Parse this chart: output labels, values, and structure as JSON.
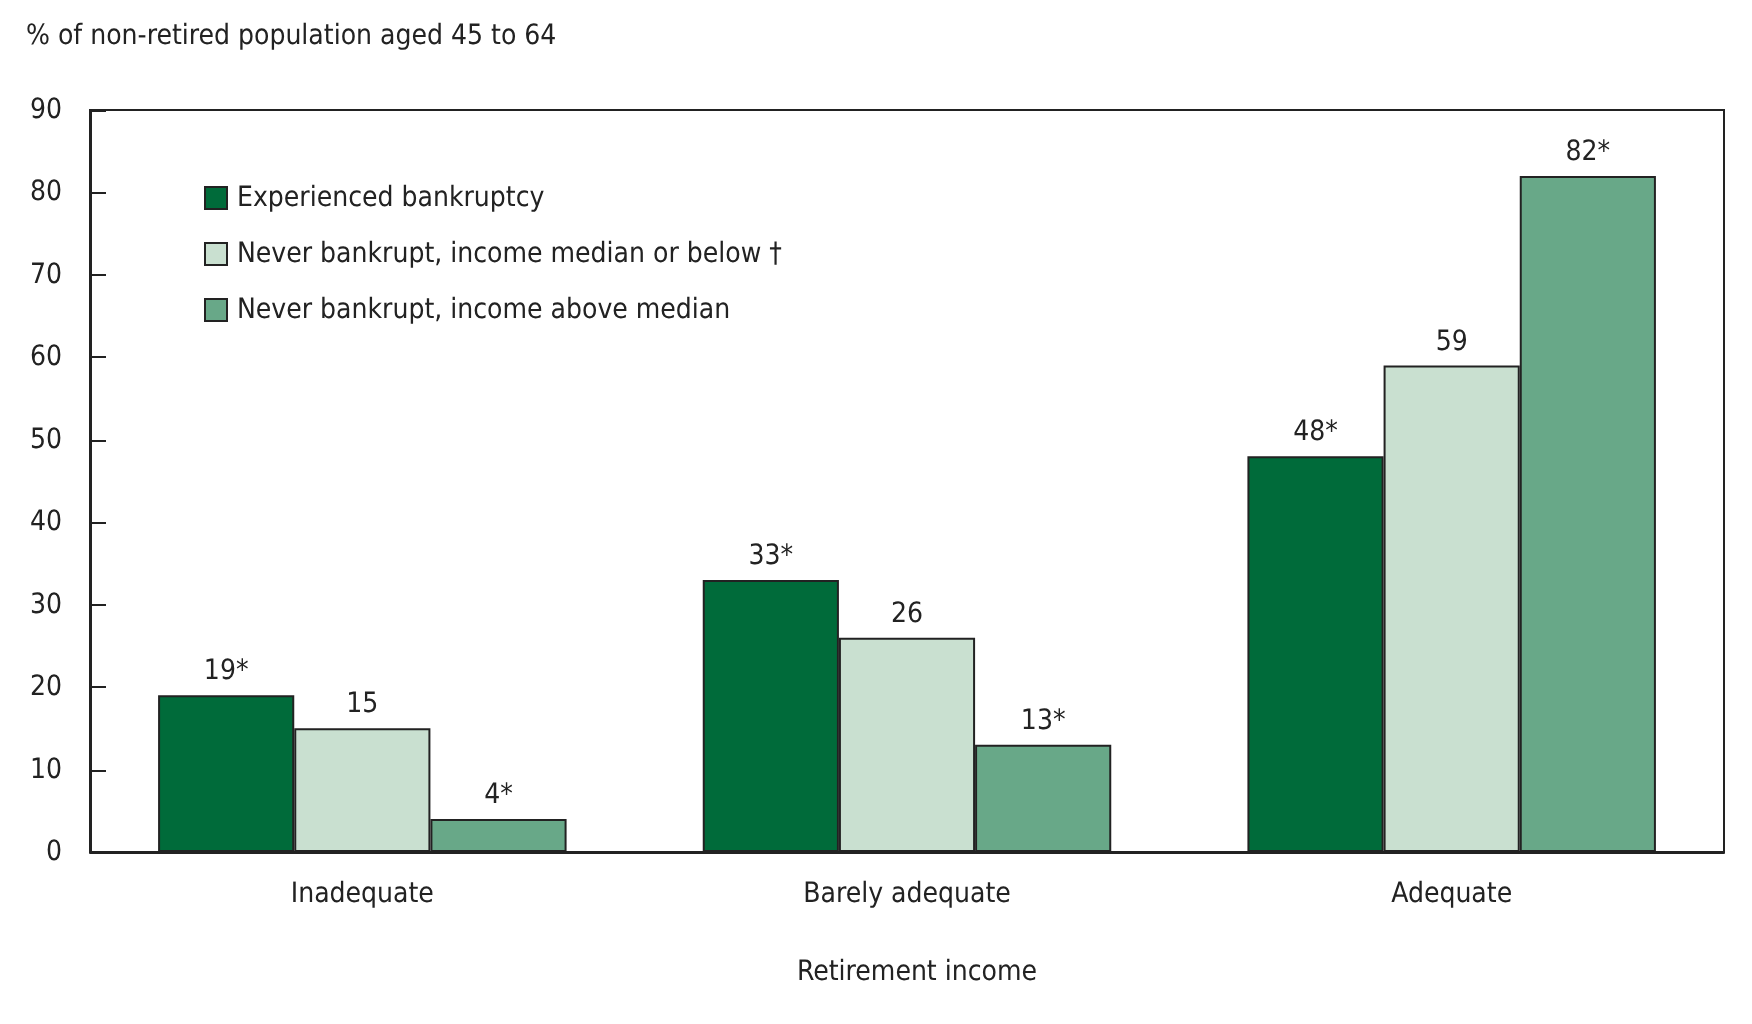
{
  "chart_data": {
    "type": "bar",
    "ylabel": "% of non-retired population aged 45 to 64",
    "xlabel": "Retirement income",
    "categories": [
      "Inadequate",
      "Barely adequate",
      "Adequate"
    ],
    "series": [
      {
        "name": "Experienced bankruptcy",
        "color": "#006b3a",
        "values": [
          19,
          33,
          48
        ],
        "value_labels": [
          "19*",
          "33*",
          "48*"
        ]
      },
      {
        "name": "Never bankrupt, income median or below †",
        "color": "#c9e0d0",
        "values": [
          15,
          26,
          59
        ],
        "value_labels": [
          "15",
          "26",
          "59"
        ]
      },
      {
        "name": "Never bankrupt, income above median",
        "color": "#68a888",
        "values": [
          4,
          13,
          82
        ],
        "value_labels": [
          "4*",
          "13*",
          "82*"
        ]
      }
    ],
    "ylim": [
      0,
      90
    ],
    "yticks": [
      0,
      10,
      20,
      30,
      40,
      50,
      60,
      70,
      80,
      90
    ],
    "grid": false,
    "legend": "top left"
  }
}
